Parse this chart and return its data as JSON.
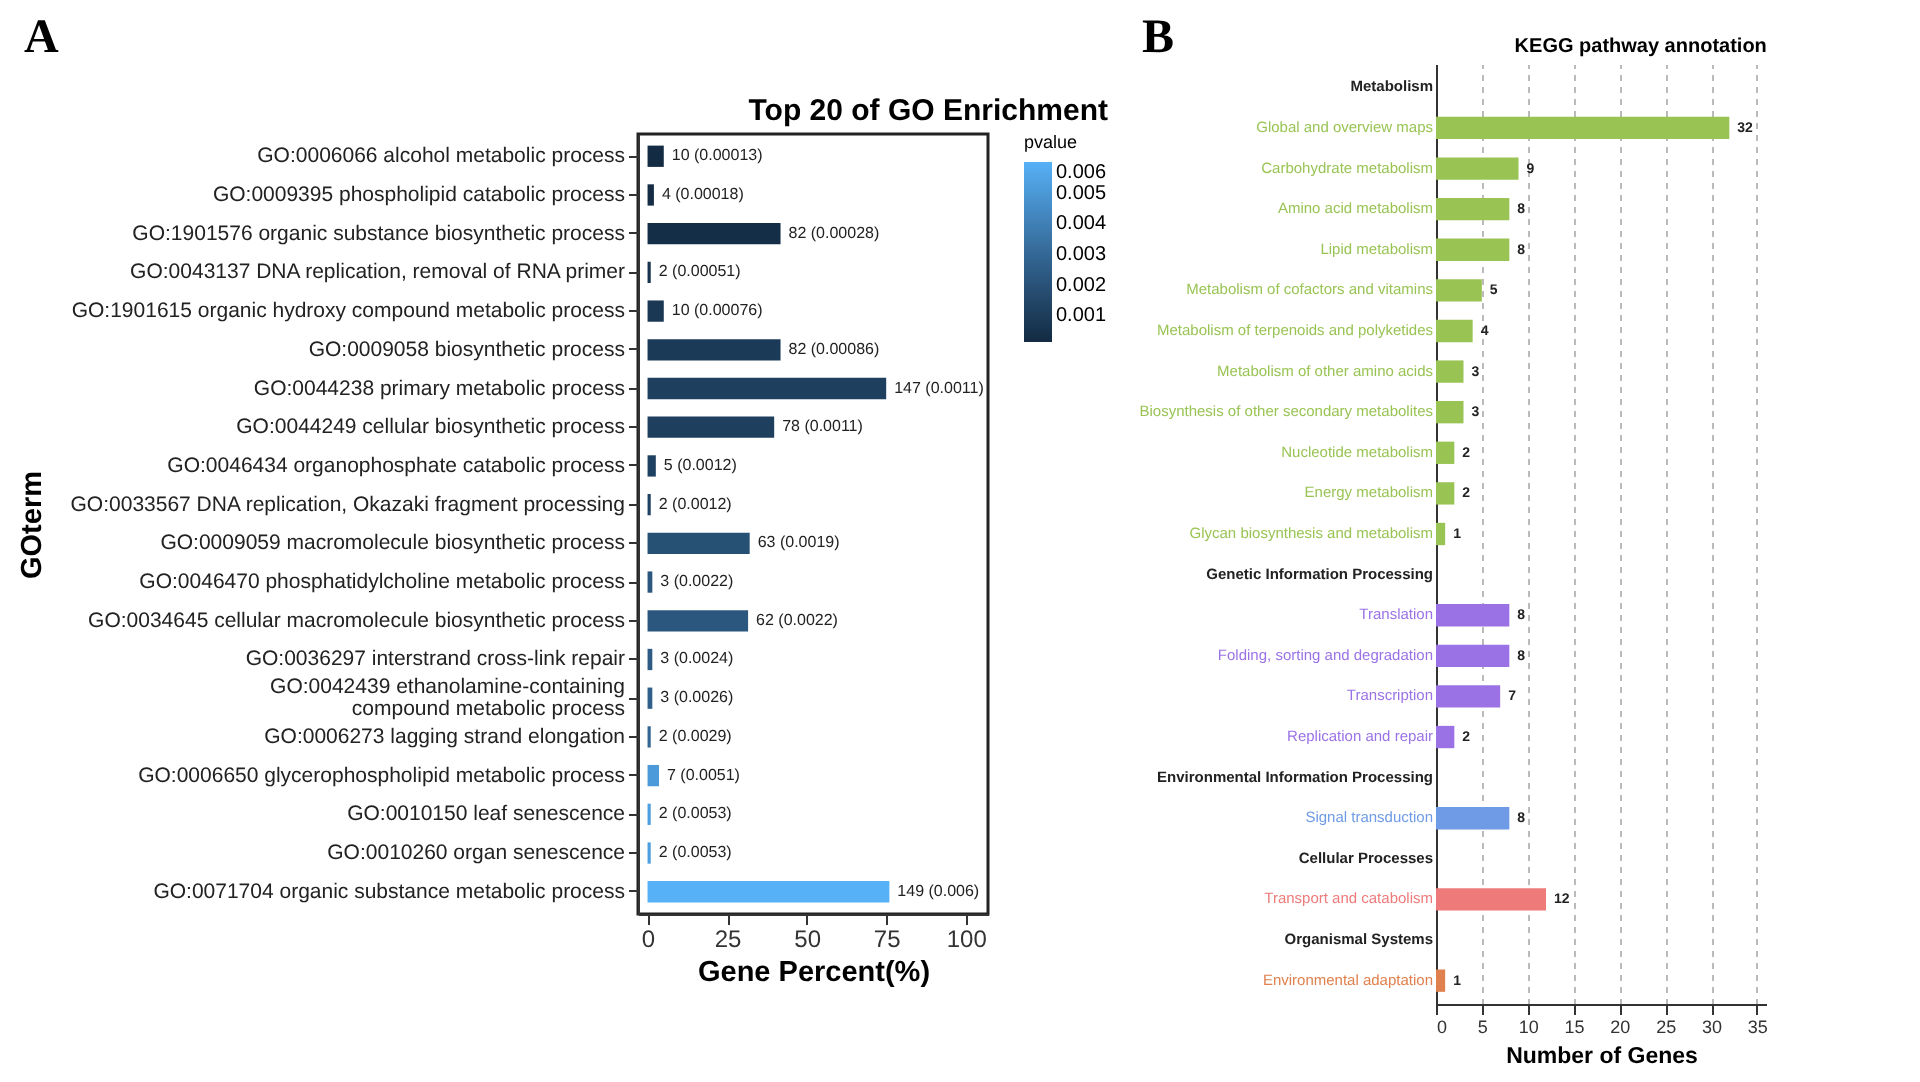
{
  "chart_data": [
    {
      "type": "bar",
      "orientation": "horizontal",
      "title": "Top 20 of GO Enrichment",
      "xlabel": "Gene Percent(%)",
      "ylabel": "GOterm",
      "annotations": [
        "A",
        {
          "text": "10 (0.00013)",
          "x": 5.1,
          "y": "GO:0006066 alcohol metabolic process"
        },
        {
          "text": "4 (0.00018)",
          "x": 2.0,
          "y": "GO:0009395 phospholipid catabolic process"
        },
        {
          "text": "82 (0.00028)",
          "x": 41.8,
          "y": "GO:1901576 organic substance biosynthetic process"
        },
        {
          "text": "2 (0.00051)",
          "x": 1.0,
          "y": "GO:0043137 DNA replication, removal of RNA primer"
        },
        {
          "text": "10 (0.00076)",
          "x": 5.1,
          "y": "GO:1901615 organic hydroxy compound metabolic process"
        },
        {
          "text": "82 (0.00086)",
          "x": 41.8,
          "y": "GO:0009058 biosynthetic process"
        },
        {
          "text": "147 (0.0011)",
          "x": 75.0,
          "y": "GO:0044238 primary metabolic process"
        },
        {
          "text": "78 (0.0011)",
          "x": 39.8,
          "y": "GO:0044249 cellular biosynthetic process"
        },
        {
          "text": "5 (0.0012)",
          "x": 2.6,
          "y": "GO:0046434 organophosphate catabolic process"
        },
        {
          "text": "2 (0.0012)",
          "x": 1.0,
          "y": "GO:0033567 DNA replication, Okazaki fragment processing"
        },
        {
          "text": "63 (0.0019)",
          "x": 32.1,
          "y": "GO:0009059 macromolecule biosynthetic process"
        },
        {
          "text": "3 (0.0022)",
          "x": 1.5,
          "y": "GO:0046470 phosphatidylcholine metabolic process"
        },
        {
          "text": "62 (0.0022)",
          "x": 31.6,
          "y": "GO:0034645 cellular macromolecule biosynthetic process"
        },
        {
          "text": "3 (0.0024)",
          "x": 1.5,
          "y": "GO:0036297 interstrand cross-link repair"
        },
        {
          "text": "3 (0.0026)",
          "x": 1.5,
          "y": "GO:0042439 ethanolamine-containing\ncompound metabolic process"
        },
        {
          "text": "2 (0.0029)",
          "x": 1.0,
          "y": "GO:0006273 lagging strand elongation"
        },
        {
          "text": "7 (0.0051)",
          "x": 3.6,
          "y": "GO:0006650 glycerophospholipid metabolic process"
        },
        {
          "text": "2 (0.0053)",
          "x": 1.0,
          "y": "GO:0010150 leaf senescence"
        },
        {
          "text": "2 (0.0053)",
          "x": 1.0,
          "y": "GO:0010260 organ senescence"
        },
        {
          "text": "149 (0.006)",
          "x": 76.0,
          "y": "GO:0071704 organic substance metabolic process"
        }
      ],
      "categories": [
        "GO:0006066 alcohol metabolic process",
        "GO:0009395 phospholipid catabolic process",
        "GO:1901576 organic substance biosynthetic process",
        "GO:0043137 DNA replication, removal of RNA primer",
        "GO:1901615 organic hydroxy compound metabolic process",
        "GO:0009058 biosynthetic process",
        "GO:0044238 primary metabolic process",
        "GO:0044249 cellular biosynthetic process",
        "GO:0046434 organophosphate catabolic process",
        "GO:0033567 DNA replication, Okazaki fragment processing",
        "GO:0009059 macromolecule biosynthetic process",
        "GO:0046470 phosphatidylcholine metabolic process",
        "GO:0034645 cellular macromolecule biosynthetic process",
        "GO:0036297 interstrand cross-link repair",
        "GO:0042439 ethanolamine-containing\ncompound metabolic process",
        "GO:0006273 lagging strand elongation",
        "GO:0006650 glycerophospholipid metabolic process",
        "GO:0010150 leaf senescence",
        "GO:0010260 organ senescence",
        "GO:0071704 organic substance metabolic process"
      ],
      "values": [
        5.1,
        2.0,
        41.8,
        1.0,
        5.1,
        41.8,
        75.0,
        39.8,
        2.6,
        1.0,
        32.1,
        1.5,
        31.6,
        1.5,
        1.5,
        1.0,
        3.6,
        1.0,
        1.0,
        76.0
      ],
      "cvalues": [
        0.00013,
        0.00018,
        0.00028,
        0.00051,
        0.00076,
        0.00086,
        0.0011,
        0.0011,
        0.0012,
        0.0012,
        0.0019,
        0.0022,
        0.0022,
        0.0024,
        0.0026,
        0.0029,
        0.0051,
        0.0053,
        0.0053,
        0.006
      ],
      "clabel": "pvalue",
      "clim": [
        0.00013,
        0.006
      ],
      "cticks": [
        0.001,
        0.002,
        0.003,
        0.004,
        0.005,
        0.006
      ],
      "xlim": [
        -3,
        107
      ],
      "xticks": [
        0,
        25,
        50,
        75,
        100
      ]
    },
    {
      "type": "bar",
      "orientation": "horizontal",
      "title": "KEGG pathway annotation",
      "xlabel": "Number of Genes",
      "annotations": [
        "B"
      ],
      "categories": [
        "Metabolism",
        "Global and overview maps",
        "Carbohydrate metabolism",
        "Amino acid metabolism",
        "Lipid metabolism",
        "Metabolism of cofactors and vitamins",
        "Metabolism of terpenoids and polyketides",
        "Metabolism of other amino acids",
        "Biosynthesis of other secondary metabolites",
        "Nucleotide metabolism",
        "Energy metabolism",
        "Glycan biosynthesis and metabolism",
        "Genetic Information Processing",
        "Translation",
        "Folding, sorting and degradation",
        "Transcription",
        "Replication and repair",
        "Environmental Information Processing",
        "Signal transduction",
        "Cellular Processes",
        "Transport and catabolism",
        "Organismal Systems",
        "Environmental adaptation"
      ],
      "values": [
        null,
        32,
        9,
        8,
        8,
        5,
        4,
        3,
        3,
        2,
        2,
        1,
        null,
        8,
        8,
        7,
        2,
        null,
        8,
        null,
        12,
        null,
        1
      ],
      "colors": [
        null,
        "#99c454",
        "#99c454",
        "#99c454",
        "#99c454",
        "#99c454",
        "#99c454",
        "#99c454",
        "#99c454",
        "#99c454",
        "#99c454",
        "#99c454",
        null,
        "#9b72e6",
        "#9b72e6",
        "#9b72e6",
        "#9b72e6",
        null,
        "#6f9be6",
        null,
        "#ee7a7a",
        null,
        "#e0804e"
      ],
      "data_labels": true,
      "grid": "x",
      "xlim": [
        0,
        36
      ],
      "xticks": [
        0,
        5,
        10,
        15,
        20,
        25,
        30,
        35
      ]
    }
  ]
}
